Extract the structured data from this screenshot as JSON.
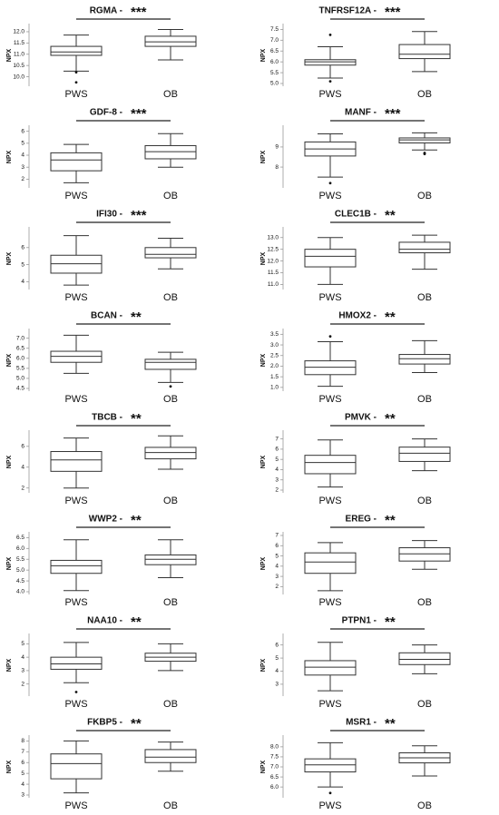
{
  "chart_data": [
    {
      "type": "box",
      "title": "RGMA -",
      "annotation": "***",
      "ylabel": "NPX",
      "categories": [
        "PWS",
        "OB"
      ],
      "color": "#333333",
      "ylim": [
        9.7,
        12.2
      ],
      "yticks": [
        {
          "value": 10,
          "label": "10.0"
        },
        10.5,
        {
          "value": 11,
          "label": "11.0"
        },
        11.5,
        {
          "value": 12,
          "label": "12.0"
        }
      ],
      "boxes": [
        {
          "whislo": 10.25,
          "q1": 10.95,
          "median": 11.1,
          "q3": 11.35,
          "whishi": 11.85,
          "outliers": [
            10.2,
            9.75
          ]
        },
        {
          "whislo": 10.75,
          "q1": 11.35,
          "median": 11.55,
          "q3": 11.8,
          "whishi": 12.1
        }
      ]
    },
    {
      "type": "box",
      "title": "TNFRSF12A -",
      "annotation": "***",
      "ylabel": "NPX",
      "categories": [
        "PWS",
        "OB"
      ],
      "color": "#333333",
      "ylim": [
        5.0,
        7.6
      ],
      "yticks": [
        {
          "value": 5,
          "label": "5.0"
        },
        5.5,
        {
          "value": 6,
          "label": "6.0"
        },
        6.5,
        {
          "value": 7,
          "label": "7.0"
        },
        7.5
      ],
      "boxes": [
        {
          "whislo": 5.25,
          "q1": 5.85,
          "median": 6.0,
          "q3": 6.1,
          "whishi": 6.7,
          "outliers": [
            7.25,
            5.1
          ]
        },
        {
          "whislo": 5.55,
          "q1": 6.15,
          "median": 6.35,
          "q3": 6.8,
          "whishi": 7.4
        }
      ]
    },
    {
      "type": "box",
      "title": "GDF-8 -",
      "annotation": "***",
      "ylabel": "NPX",
      "categories": [
        "PWS",
        "OB"
      ],
      "color": "#333333",
      "ylim": [
        1.5,
        6.2
      ],
      "yticks": [
        2,
        3,
        4,
        5,
        6
      ],
      "boxes": [
        {
          "whislo": 1.7,
          "q1": 2.7,
          "median": 3.6,
          "q3": 4.2,
          "whishi": 4.9
        },
        {
          "whislo": 3.0,
          "q1": 3.7,
          "median": 4.3,
          "q3": 4.8,
          "whishi": 5.8
        }
      ]
    },
    {
      "type": "box",
      "title": "MANF -",
      "annotation": "***",
      "ylabel": "NPX",
      "categories": [
        "PWS",
        "OB"
      ],
      "color": "#333333",
      "ylim": [
        7.1,
        9.9
      ],
      "yticks": [
        8,
        9
      ],
      "boxes": [
        {
          "whislo": 7.5,
          "q1": 8.55,
          "median": 8.9,
          "q3": 9.25,
          "whishi": 9.65,
          "outliers": [
            7.2
          ]
        },
        {
          "whislo": 8.85,
          "q1": 9.2,
          "median": 9.35,
          "q3": 9.45,
          "whishi": 9.7,
          "outliers": [
            8.7,
            8.65
          ]
        }
      ]
    },
    {
      "type": "box",
      "title": "IFI30 -",
      "annotation": "***",
      "ylabel": "NPX",
      "categories": [
        "PWS",
        "OB"
      ],
      "color": "#333333",
      "ylim": [
        3.7,
        7.0
      ],
      "yticks": [
        4,
        5,
        6
      ],
      "boxes": [
        {
          "whislo": 3.8,
          "q1": 4.5,
          "median": 5.05,
          "q3": 5.55,
          "whishi": 6.7
        },
        {
          "whislo": 4.75,
          "q1": 5.4,
          "median": 5.6,
          "q3": 6.0,
          "whishi": 6.55
        }
      ]
    },
    {
      "type": "box",
      "title": "CLEC1B -",
      "annotation": "**",
      "ylabel": "NPX",
      "categories": [
        "PWS",
        "OB"
      ],
      "color": "#333333",
      "ylim": [
        10.9,
        13.3
      ],
      "yticks": [
        {
          "value": 11,
          "label": "11.0"
        },
        11.5,
        {
          "value": 12,
          "label": "12.0"
        },
        12.5,
        {
          "value": 13,
          "label": "13.0"
        }
      ],
      "boxes": [
        {
          "whislo": 11.0,
          "q1": 11.75,
          "median": 12.2,
          "q3": 12.5,
          "whishi": 13.0
        },
        {
          "whislo": 11.65,
          "q1": 12.35,
          "median": 12.5,
          "q3": 12.8,
          "whishi": 13.1
        }
      ]
    },
    {
      "type": "box",
      "title": "BCAN -",
      "annotation": "**",
      "ylabel": "NPX",
      "categories": [
        "PWS",
        "OB"
      ],
      "color": "#333333",
      "ylim": [
        4.5,
        7.3
      ],
      "yticks": [
        4.5,
        {
          "value": 5,
          "label": "5.0"
        },
        5.5,
        {
          "value": 6,
          "label": "6.0"
        },
        6.5,
        {
          "value": 7,
          "label": "7.0"
        }
      ],
      "boxes": [
        {
          "whislo": 5.25,
          "q1": 5.8,
          "median": 6.1,
          "q3": 6.35,
          "whishi": 7.15
        },
        {
          "whislo": 4.8,
          "q1": 5.45,
          "median": 5.8,
          "q3": 5.95,
          "whishi": 6.3,
          "outliers": [
            4.6
          ]
        }
      ]
    },
    {
      "type": "box",
      "title": "HMOX2 -",
      "annotation": "**",
      "ylabel": "NPX",
      "categories": [
        "PWS",
        "OB"
      ],
      "color": "#333333",
      "ylim": [
        0.95,
        3.6
      ],
      "yticks": [
        {
          "value": 1,
          "label": "1.0"
        },
        1.5,
        {
          "value": 2,
          "label": "2.0"
        },
        2.5,
        {
          "value": 3,
          "label": "3.0"
        },
        3.5
      ],
      "boxes": [
        {
          "whislo": 1.05,
          "q1": 1.6,
          "median": 1.95,
          "q3": 2.25,
          "whishi": 3.15,
          "outliers": [
            3.4
          ]
        },
        {
          "whislo": 1.7,
          "q1": 2.1,
          "median": 2.35,
          "q3": 2.55,
          "whishi": 3.2
        }
      ]
    },
    {
      "type": "box",
      "title": "TBCB -",
      "annotation": "**",
      "ylabel": "NPX",
      "categories": [
        "PWS",
        "OB"
      ],
      "color": "#333333",
      "ylim": [
        1.8,
        7.2
      ],
      "yticks": [
        2,
        4,
        6
      ],
      "boxes": [
        {
          "whislo": 2.0,
          "q1": 3.6,
          "median": 4.7,
          "q3": 5.5,
          "whishi": 6.8
        },
        {
          "whislo": 3.8,
          "q1": 4.8,
          "median": 5.4,
          "q3": 5.9,
          "whishi": 7.0
        }
      ]
    },
    {
      "type": "box",
      "title": "PMVK -",
      "annotation": "**",
      "ylabel": "NPX",
      "categories": [
        "PWS",
        "OB"
      ],
      "color": "#333333",
      "ylim": [
        2.0,
        7.5
      ],
      "yticks": [
        2,
        3,
        4,
        5,
        6,
        7
      ],
      "boxes": [
        {
          "whislo": 2.3,
          "q1": 3.6,
          "median": 4.7,
          "q3": 5.4,
          "whishi": 6.9
        },
        {
          "whislo": 3.9,
          "q1": 4.8,
          "median": 5.6,
          "q3": 6.2,
          "whishi": 7.0
        }
      ]
    },
    {
      "type": "box",
      "title": "WWP2 -",
      "annotation": "**",
      "ylabel": "NPX",
      "categories": [
        "PWS",
        "OB"
      ],
      "color": "#333333",
      "ylim": [
        4.0,
        6.6
      ],
      "yticks": [
        {
          "value": 4,
          "label": "4.0"
        },
        4.5,
        {
          "value": 5,
          "label": "5.0"
        },
        5.5,
        {
          "value": 6,
          "label": "6.0"
        },
        6.5
      ],
      "boxes": [
        {
          "whislo": 4.05,
          "q1": 4.85,
          "median": 5.2,
          "q3": 5.45,
          "whishi": 6.4
        },
        {
          "whislo": 4.65,
          "q1": 5.25,
          "median": 5.5,
          "q3": 5.7,
          "whishi": 6.4
        }
      ]
    },
    {
      "type": "box",
      "title": "EREG -",
      "annotation": "**",
      "ylabel": "NPX",
      "categories": [
        "PWS",
        "OB"
      ],
      "color": "#333333",
      "ylim": [
        1.5,
        7.0
      ],
      "yticks": [
        2,
        3,
        4,
        5,
        6,
        7
      ],
      "boxes": [
        {
          "whislo": 1.6,
          "q1": 3.3,
          "median": 4.4,
          "q3": 5.3,
          "whishi": 6.3
        },
        {
          "whislo": 3.7,
          "q1": 4.5,
          "median": 5.2,
          "q3": 5.8,
          "whishi": 6.5
        }
      ]
    },
    {
      "type": "box",
      "title": "NAA10 -",
      "annotation": "**",
      "ylabel": "NPX",
      "categories": [
        "PWS",
        "OB"
      ],
      "color": "#333333",
      "ylim": [
        1.3,
        5.5
      ],
      "yticks": [
        2,
        3,
        4,
        5
      ],
      "boxes": [
        {
          "whislo": 2.1,
          "q1": 3.1,
          "median": 3.5,
          "q3": 4.0,
          "whishi": 5.1,
          "outliers": [
            1.4
          ]
        },
        {
          "whislo": 3.0,
          "q1": 3.7,
          "median": 4.0,
          "q3": 4.3,
          "whishi": 5.0
        }
      ]
    },
    {
      "type": "box",
      "title": "PTPN1 -",
      "annotation": "**",
      "ylabel": "NPX",
      "categories": [
        "PWS",
        "OB"
      ],
      "color": "#333333",
      "ylim": [
        2.3,
        6.6
      ],
      "yticks": [
        3,
        4,
        5,
        6
      ],
      "boxes": [
        {
          "whislo": 2.5,
          "q1": 3.7,
          "median": 4.3,
          "q3": 4.8,
          "whishi": 6.2
        },
        {
          "whislo": 3.8,
          "q1": 4.5,
          "median": 4.9,
          "q3": 5.4,
          "whishi": 6.0
        }
      ]
    },
    {
      "type": "box",
      "title": "FKBP5 -",
      "annotation": "**",
      "ylabel": "NPX",
      "categories": [
        "PWS",
        "OB"
      ],
      "color": "#333333",
      "ylim": [
        3.0,
        8.2
      ],
      "yticks": [
        3,
        4,
        5,
        6,
        7,
        8
      ],
      "boxes": [
        {
          "whislo": 3.2,
          "q1": 4.5,
          "median": 5.9,
          "q3": 6.8,
          "whishi": 8.0
        },
        {
          "whislo": 5.2,
          "q1": 6.0,
          "median": 6.5,
          "q3": 7.2,
          "whishi": 7.9
        }
      ]
    },
    {
      "type": "box",
      "title": "MSR1 -",
      "annotation": "**",
      "ylabel": "NPX",
      "categories": [
        "PWS",
        "OB"
      ],
      "color": "#333333",
      "ylim": [
        5.6,
        8.4
      ],
      "yticks": [
        {
          "value": 6,
          "label": "6.0"
        },
        6.5,
        {
          "value": 7,
          "label": "7.0"
        },
        7.5,
        {
          "value": 8,
          "label": "8.0"
        }
      ],
      "boxes": [
        {
          "whislo": 6.0,
          "q1": 6.75,
          "median": 7.1,
          "q3": 7.4,
          "whishi": 8.2,
          "outliers": [
            5.7
          ]
        },
        {
          "whislo": 6.55,
          "q1": 7.2,
          "median": 7.45,
          "q3": 7.7,
          "whishi": 8.05
        }
      ]
    }
  ]
}
